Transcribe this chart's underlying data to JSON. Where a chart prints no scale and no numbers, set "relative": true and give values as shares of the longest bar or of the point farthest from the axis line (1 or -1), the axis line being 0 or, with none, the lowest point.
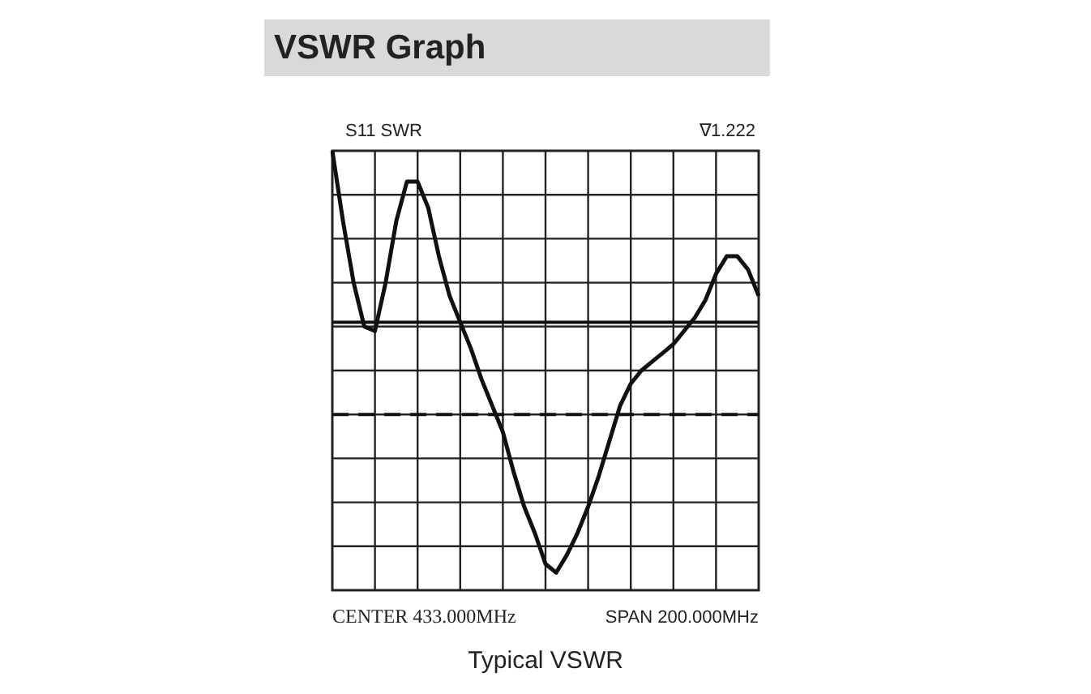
{
  "chart_data": {
    "type": "line",
    "title": "VSWR Graph",
    "xlabel": "Typical VSWR",
    "relative": true,
    "grid": true,
    "legend": false,
    "marker": "none",
    "line_style": "solid",
    "categories": [
      null,
      null,
      null,
      null,
      null,
      null,
      null,
      null,
      null,
      null,
      null,
      null,
      null,
      null,
      null,
      null,
      null,
      null,
      null,
      null,
      null,
      null,
      null,
      null,
      null,
      null,
      null,
      null,
      null,
      null,
      null,
      null,
      null,
      null,
      null,
      null,
      null,
      null,
      null,
      null,
      null
    ],
    "series": [
      {
        "color": "#111111",
        "values": [
          1.0,
          0.84,
          0.7,
          0.6,
          0.59,
          0.7,
          0.84,
          0.93,
          0.93,
          0.87,
          0.76,
          0.67,
          0.61,
          0.55,
          0.48,
          0.42,
          0.36,
          0.27,
          0.19,
          0.13,
          0.06,
          0.04,
          0.08,
          0.13,
          0.19,
          0.26,
          0.34,
          0.42,
          0.47,
          0.5,
          0.52,
          0.54,
          0.56,
          0.59,
          0.62,
          0.66,
          0.72,
          0.76,
          0.76,
          0.73,
          0.67
        ]
      }
    ],
    "ref_lines": [
      {
        "axis": "y",
        "value": 0.61,
        "color": "#111111",
        "line_style": "solid"
      },
      {
        "axis": "y",
        "value": 0.4,
        "color": "#111111",
        "line_style": "dashed"
      }
    ],
    "annotations": [
      "S11 SWR",
      "∇1.222",
      "CENTER 433.000MHz",
      "SPAN 200.000MHz"
    ]
  }
}
